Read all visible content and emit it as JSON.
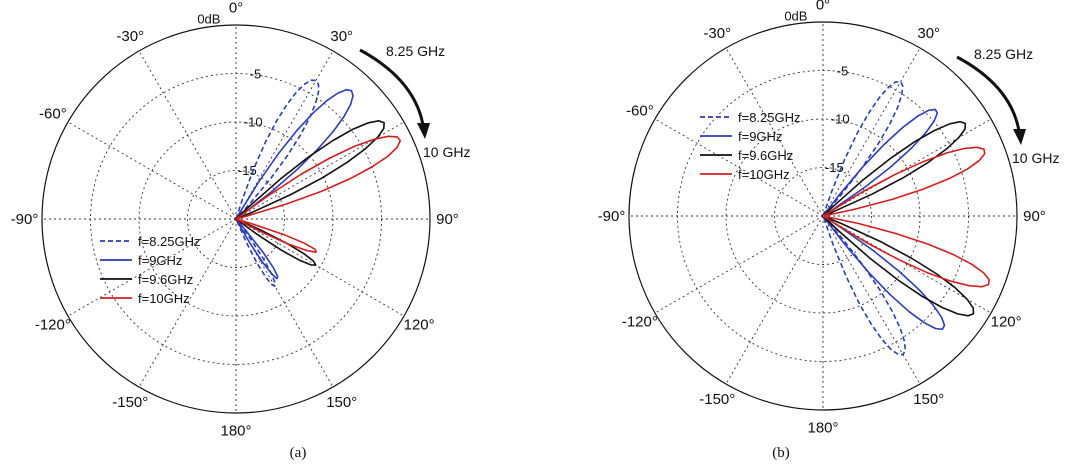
{
  "figure": {
    "captions": [
      "(a)",
      "(b)"
    ],
    "angle_labels": [
      "0°",
      "30°",
      "90°",
      "120°",
      "150°",
      "180°",
      "-150°",
      "-120°",
      "-90°",
      "-60°",
      "-30°"
    ],
    "angle_values": [
      0,
      30,
      90,
      120,
      150,
      180,
      -150,
      -120,
      -90,
      -60,
      -30
    ],
    "ring_labels": [
      "0dB",
      "-5",
      "-10",
      "-15"
    ],
    "ring_values": [
      0,
      -5,
      -10,
      -15
    ],
    "arrow_start_label": "8.25 GHz",
    "arrow_end_label": "10 GHz"
  },
  "chart_data": [
    {
      "type": "polar",
      "panel": "(a)",
      "radial_unit": "dB",
      "r_range": [
        -20,
        0
      ],
      "grid": true,
      "legend_position": "lower-left",
      "theta_direction": "clockwise from top",
      "series": [
        {
          "name": "f=8.25GHz",
          "color": "#2b3db8",
          "dashed": true,
          "lobes": [
            {
              "theta": 30,
              "peak_db": -3.5,
              "width": 11
            },
            {
              "theta": 150,
              "peak_db": -12,
              "width": 9
            }
          ]
        },
        {
          "name": "f=9GHz",
          "color": "#2b3db8",
          "dashed": false,
          "lobes": [
            {
              "theta": 42,
              "peak_db": -2.2,
              "width": 10
            },
            {
              "theta": 145,
              "peak_db": -12.5,
              "width": 8
            }
          ]
        },
        {
          "name": "f=9.6GHz",
          "color": "#111111",
          "dashed": false,
          "lobes": [
            {
              "theta": 57,
              "peak_db": -1.8,
              "width": 9
            },
            {
              "theta": 120,
              "peak_db": -10.5,
              "width": 8
            }
          ]
        },
        {
          "name": "f=10GHz",
          "color": "#d21f1f",
          "dashed": false,
          "lobes": [
            {
              "theta": 64,
              "peak_db": -1.2,
              "width": 9
            },
            {
              "theta": 112,
              "peak_db": -11,
              "width": 7
            }
          ]
        }
      ]
    },
    {
      "type": "polar",
      "panel": "(b)",
      "radial_unit": "dB",
      "r_range": [
        -20,
        0
      ],
      "grid": true,
      "legend_position": "upper-left",
      "theta_direction": "clockwise from top",
      "series": [
        {
          "name": "f=8.25GHz",
          "color": "#2b3db8",
          "dashed": true,
          "lobes": [
            {
              "theta": 30,
              "peak_db": -4,
              "width": 10
            },
            {
              "theta": 150,
              "peak_db": -3.5,
              "width": 10
            }
          ]
        },
        {
          "name": "f=9GHz",
          "color": "#2b3db8",
          "dashed": false,
          "lobes": [
            {
              "theta": 47,
              "peak_db": -4,
              "width": 9
            },
            {
              "theta": 133,
              "peak_db": -3,
              "width": 9
            }
          ]
        },
        {
          "name": "f=9.6GHz",
          "color": "#111111",
          "dashed": false,
          "lobes": [
            {
              "theta": 57,
              "peak_db": -2.5,
              "width": 9
            },
            {
              "theta": 123,
              "peak_db": -1.5,
              "width": 9
            }
          ]
        },
        {
          "name": "f=10GHz",
          "color": "#d21f1f",
          "dashed": false,
          "lobes": [
            {
              "theta": 68,
              "peak_db": -2,
              "width": 9
            },
            {
              "theta": 112,
              "peak_db": -1.5,
              "width": 9
            }
          ]
        }
      ]
    }
  ]
}
